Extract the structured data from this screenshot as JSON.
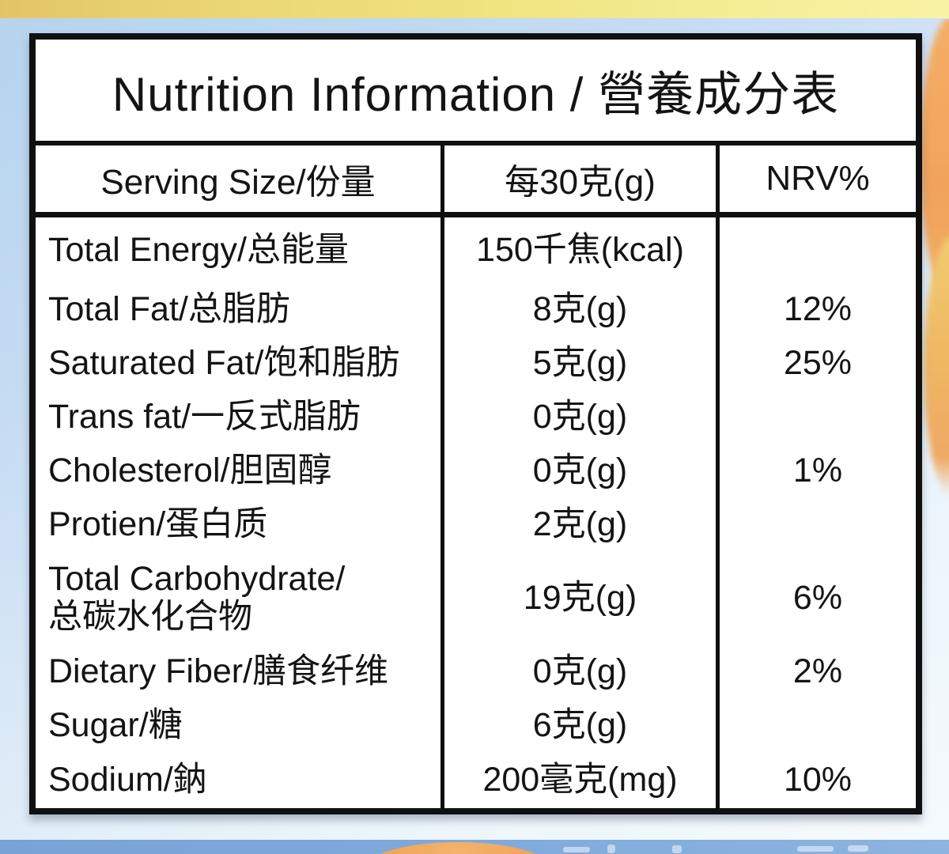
{
  "title": "Nutrition Information / 營養成分表",
  "table": {
    "headers": {
      "nutrient": "Serving Size/份量",
      "amount": "每30克(g)",
      "nrv": "NRV%"
    },
    "rows": [
      {
        "nutrient": "Total Energy/总能量",
        "amount": "150千焦(kcal)",
        "nrv": ""
      },
      {
        "nutrient": "Total Fat/总脂肪",
        "amount": "8克(g)",
        "nrv": "12%"
      },
      {
        "nutrient": "Saturated Fat/饱和脂肪",
        "amount": "5克(g)",
        "nrv": "25%"
      },
      {
        "nutrient": "Trans fat/一反式脂肪",
        "amount": "0克(g)",
        "nrv": ""
      },
      {
        "nutrient": "Cholesterol/胆固醇",
        "amount": "0克(g)",
        "nrv": "1%"
      },
      {
        "nutrient": "Protien/蛋白质",
        "amount": "2克(g)",
        "nrv": ""
      },
      {
        "nutrient": "Total Carbohydrate/\n总碳水化合物",
        "amount": "19克(g)",
        "nrv": "6%"
      },
      {
        "nutrient": "Dietary Fiber/膳食纤维",
        "amount": "0克(g)",
        "nrv": "2%"
      },
      {
        "nutrient": "Sugar/糖",
        "amount": "6克(g)",
        "nrv": ""
      },
      {
        "nutrient": "Sodium/鈉",
        "amount": "200毫克(mg)",
        "nrv": "10%"
      }
    ]
  },
  "colors": {
    "top_band_gold": "#e3c566",
    "top_band_yellow": "#f4ee96",
    "background_blue": "#b5d3ee",
    "table_border": "#101010",
    "table_bg": "#ffffff",
    "bottom_strip_blue": "#7da8da",
    "orange_accent": "#f0a35a"
  }
}
